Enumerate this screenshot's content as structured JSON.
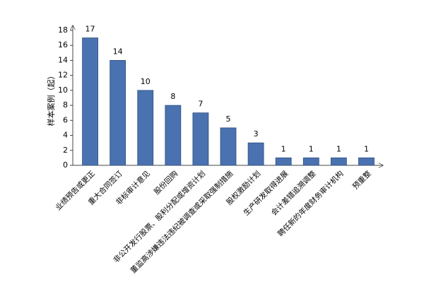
{
  "chart_data": {
    "type": "bar",
    "y_label": "样本案例（起）",
    "categories": [
      "业绩预告或更正",
      "重大合同签订",
      "非标审计意见",
      "股份回购",
      "非公开发行股票、股利分配或增资计划",
      "董监高涉嫌违法违纪被调查或采取强制措施",
      "股权激励计划",
      "生产研发取得进展",
      "会计差错追溯调整",
      "聘任新的年度财务审计机构",
      "预重整"
    ],
    "values": [
      17,
      14,
      10,
      8,
      7,
      5,
      3,
      1,
      1,
      1,
      1
    ],
    "color": "#4a72b0",
    "ylim": [
      0,
      18
    ],
    "yticks": [
      0,
      2,
      4,
      6,
      8,
      10,
      12,
      14,
      16,
      18
    ],
    "grid": false
  }
}
